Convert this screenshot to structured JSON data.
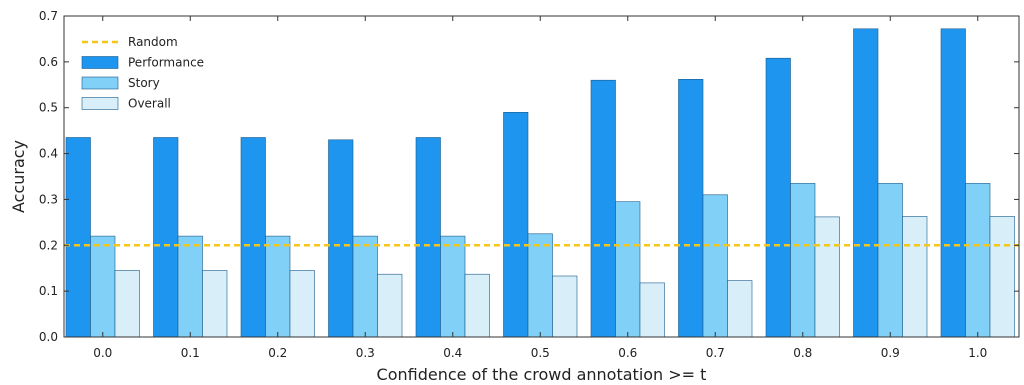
{
  "chart_data": {
    "type": "bar",
    "xlabel": "Confidence of the crowd annotation >= t",
    "ylabel": "Accuracy",
    "ylim": [
      0,
      0.7
    ],
    "yticks": [
      "0.0",
      "0.1",
      "0.2",
      "0.3",
      "0.4",
      "0.5",
      "0.6",
      "0.7"
    ],
    "categories": [
      "0.0",
      "0.1",
      "0.2",
      "0.3",
      "0.4",
      "0.5",
      "0.6",
      "0.7",
      "0.8",
      "0.9",
      "1.0"
    ],
    "series": [
      {
        "name": "Performance",
        "color": "#1e96f0",
        "values": [
          0.435,
          0.435,
          0.435,
          0.43,
          0.435,
          0.49,
          0.56,
          0.562,
          0.608,
          0.672,
          0.672
        ]
      },
      {
        "name": "Story",
        "color": "#80d0f8",
        "values": [
          0.22,
          0.22,
          0.22,
          0.22,
          0.22,
          0.225,
          0.295,
          0.31,
          0.335,
          0.335,
          0.335
        ]
      },
      {
        "name": "Overall",
        "color": "#d8eef8",
        "values": [
          0.145,
          0.145,
          0.145,
          0.137,
          0.137,
          0.133,
          0.118,
          0.123,
          0.262,
          0.263,
          0.263
        ]
      }
    ],
    "reference_line": {
      "name": "Random",
      "value": 0.2,
      "color": "#f5c518",
      "style": "dashed"
    },
    "legend": {
      "position": "top-left",
      "entries": [
        "Random",
        "Performance",
        "Story",
        "Overall"
      ]
    },
    "grid": false
  }
}
